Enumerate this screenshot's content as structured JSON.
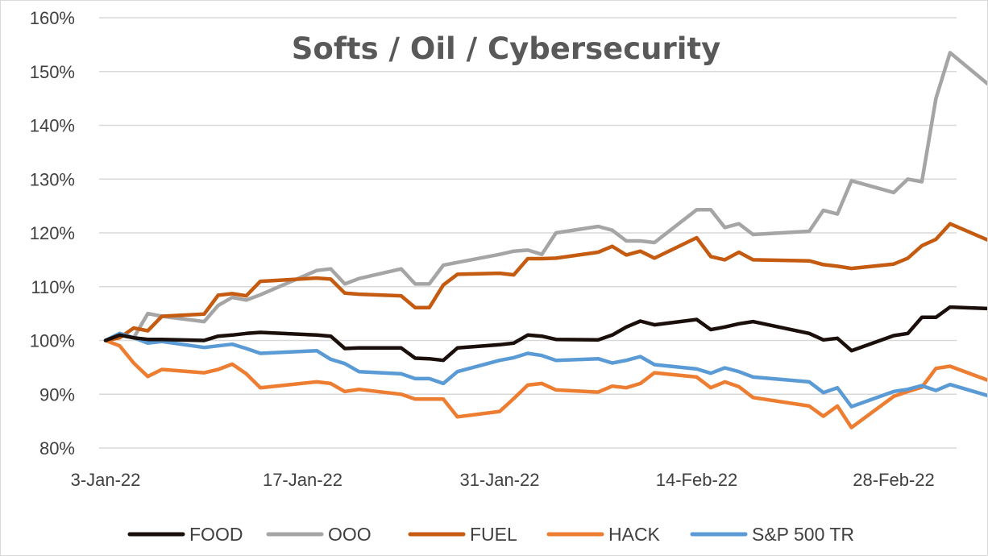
{
  "chart_data": {
    "type": "line",
    "title": "Softs / Oil / Cybersecurity",
    "xlabel": "",
    "ylabel": "",
    "ylim": [
      80,
      160
    ],
    "y_ticks": [
      80,
      90,
      100,
      110,
      120,
      130,
      140,
      150,
      160
    ],
    "y_tick_labels": [
      "80%",
      "90%",
      "100%",
      "110%",
      "120%",
      "130%",
      "140%",
      "150%",
      "160%"
    ],
    "x_tick_labels": [
      "3-Jan-22",
      "17-Jan-22",
      "31-Jan-22",
      "14-Feb-22",
      "28-Feb-22"
    ],
    "x_tick_dates": [
      "2022-01-03",
      "2022-01-17",
      "2022-01-31",
      "2022-02-14",
      "2022-02-28"
    ],
    "xlim": [
      "2022-01-03",
      "2022-03-04"
    ],
    "grid": "horizontal",
    "legend_position": "bottom",
    "series": [
      {
        "name": "FOOD",
        "color": "#1a0f0a",
        "points": [
          [
            "2022-01-03",
            100
          ],
          [
            "2022-01-04",
            101
          ],
          [
            "2022-01-05",
            100.5
          ],
          [
            "2022-01-06",
            100.2
          ],
          [
            "2022-01-07",
            100.2
          ],
          [
            "2022-01-10",
            100
          ],
          [
            "2022-01-11",
            100.8
          ],
          [
            "2022-01-12",
            101
          ],
          [
            "2022-01-13",
            101.3
          ],
          [
            "2022-01-14",
            101.5
          ],
          [
            "2022-01-18",
            101
          ],
          [
            "2022-01-19",
            100.8
          ],
          [
            "2022-01-20",
            98.5
          ],
          [
            "2022-01-21",
            98.6
          ],
          [
            "2022-01-24",
            98.6
          ],
          [
            "2022-01-25",
            96.7
          ],
          [
            "2022-01-26",
            96.6
          ],
          [
            "2022-01-27",
            96.3
          ],
          [
            "2022-01-28",
            98.6
          ],
          [
            "2022-01-31",
            99.2
          ],
          [
            "2022-02-01",
            99.5
          ],
          [
            "2022-02-02",
            101
          ],
          [
            "2022-02-03",
            100.8
          ],
          [
            "2022-02-04",
            100.2
          ],
          [
            "2022-02-07",
            100.1
          ],
          [
            "2022-02-08",
            101
          ],
          [
            "2022-02-09",
            102.5
          ],
          [
            "2022-02-10",
            103.6
          ],
          [
            "2022-02-11",
            102.9
          ],
          [
            "2022-02-14",
            103.9
          ],
          [
            "2022-02-15",
            102
          ],
          [
            "2022-02-16",
            102.5
          ],
          [
            "2022-02-17",
            103.1
          ],
          [
            "2022-02-18",
            103.5
          ],
          [
            "2022-02-22",
            101.3
          ],
          [
            "2022-02-23",
            100.1
          ],
          [
            "2022-02-24",
            100.4
          ],
          [
            "2022-02-25",
            98.1
          ],
          [
            "2022-02-28",
            100.9
          ],
          [
            "2022-03-01",
            101.3
          ],
          [
            "2022-03-02",
            104.3
          ],
          [
            "2022-03-03",
            104.3
          ],
          [
            "2022-03-04",
            106.2
          ],
          [
            "2022-03-07",
            105.9
          ]
        ]
      },
      {
        "name": "OOO",
        "color": "#a5a5a5",
        "points": [
          [
            "2022-01-03",
            100
          ],
          [
            "2022-01-04",
            101
          ],
          [
            "2022-01-05",
            100.5
          ],
          [
            "2022-01-06",
            105
          ],
          [
            "2022-01-07",
            104.5
          ],
          [
            "2022-01-10",
            103.5
          ],
          [
            "2022-01-11",
            106.5
          ],
          [
            "2022-01-12",
            108
          ],
          [
            "2022-01-13",
            107.5
          ],
          [
            "2022-01-14",
            108.5
          ],
          [
            "2022-01-18",
            113
          ],
          [
            "2022-01-19",
            113.3
          ],
          [
            "2022-01-20",
            110.5
          ],
          [
            "2022-01-21",
            111.5
          ],
          [
            "2022-01-24",
            113.3
          ],
          [
            "2022-01-25",
            110.5
          ],
          [
            "2022-01-26",
            110.5
          ],
          [
            "2022-01-27",
            114
          ],
          [
            "2022-01-28",
            114.5
          ],
          [
            "2022-01-31",
            116
          ],
          [
            "2022-02-01",
            116.6
          ],
          [
            "2022-02-02",
            116.8
          ],
          [
            "2022-02-03",
            116
          ],
          [
            "2022-02-04",
            120
          ],
          [
            "2022-02-07",
            121.2
          ],
          [
            "2022-02-08",
            120.5
          ],
          [
            "2022-02-09",
            118.5
          ],
          [
            "2022-02-10",
            118.5
          ],
          [
            "2022-02-11",
            118.2
          ],
          [
            "2022-02-14",
            124.3
          ],
          [
            "2022-02-15",
            124.3
          ],
          [
            "2022-02-16",
            121
          ],
          [
            "2022-02-17",
            121.7
          ],
          [
            "2022-02-18",
            119.7
          ],
          [
            "2022-02-22",
            120.3
          ],
          [
            "2022-02-23",
            124.2
          ],
          [
            "2022-02-24",
            123.5
          ],
          [
            "2022-02-25",
            129.7
          ],
          [
            "2022-02-28",
            127.5
          ],
          [
            "2022-03-01",
            130
          ],
          [
            "2022-03-02",
            129.5
          ],
          [
            "2022-03-03",
            145
          ],
          [
            "2022-03-04",
            153.5
          ],
          [
            "2022-03-07",
            147
          ]
        ]
      },
      {
        "name": "FUEL",
        "color": "#c55a11",
        "points": [
          [
            "2022-01-03",
            100
          ],
          [
            "2022-01-04",
            100.5
          ],
          [
            "2022-01-05",
            102.3
          ],
          [
            "2022-01-06",
            101.8
          ],
          [
            "2022-01-07",
            104.5
          ],
          [
            "2022-01-10",
            104.9
          ],
          [
            "2022-01-11",
            108.4
          ],
          [
            "2022-01-12",
            108.7
          ],
          [
            "2022-01-13",
            108.3
          ],
          [
            "2022-01-14",
            111
          ],
          [
            "2022-01-18",
            111.6
          ],
          [
            "2022-01-19",
            111.4
          ],
          [
            "2022-01-20",
            108.8
          ],
          [
            "2022-01-21",
            108.6
          ],
          [
            "2022-01-24",
            108.3
          ],
          [
            "2022-01-25",
            106.1
          ],
          [
            "2022-01-26",
            106.1
          ],
          [
            "2022-01-27",
            110.3
          ],
          [
            "2022-01-28",
            112.3
          ],
          [
            "2022-01-31",
            112.5
          ],
          [
            "2022-02-01",
            112.2
          ],
          [
            "2022-02-02",
            115.2
          ],
          [
            "2022-02-03",
            115.2
          ],
          [
            "2022-02-04",
            115.3
          ],
          [
            "2022-02-07",
            116.4
          ],
          [
            "2022-02-08",
            117.5
          ],
          [
            "2022-02-09",
            115.9
          ],
          [
            "2022-02-10",
            116.6
          ],
          [
            "2022-02-11",
            115.3
          ],
          [
            "2022-02-14",
            119.1
          ],
          [
            "2022-02-15",
            115.6
          ],
          [
            "2022-02-16",
            115
          ],
          [
            "2022-02-17",
            116.4
          ],
          [
            "2022-02-18",
            115
          ],
          [
            "2022-02-22",
            114.8
          ],
          [
            "2022-02-23",
            114.1
          ],
          [
            "2022-02-24",
            113.8
          ],
          [
            "2022-02-25",
            113.4
          ],
          [
            "2022-02-28",
            114.2
          ],
          [
            "2022-03-01",
            115.3
          ],
          [
            "2022-03-02",
            117.6
          ],
          [
            "2022-03-03",
            118.8
          ],
          [
            "2022-03-04",
            121.7
          ],
          [
            "2022-03-07",
            118.3
          ]
        ]
      },
      {
        "name": "HACK",
        "color": "#ed7d31",
        "points": [
          [
            "2022-01-03",
            100
          ],
          [
            "2022-01-04",
            99
          ],
          [
            "2022-01-05",
            95.8
          ],
          [
            "2022-01-06",
            93.3
          ],
          [
            "2022-01-07",
            94.6
          ],
          [
            "2022-01-10",
            94
          ],
          [
            "2022-01-11",
            94.6
          ],
          [
            "2022-01-12",
            95.6
          ],
          [
            "2022-01-13",
            93.8
          ],
          [
            "2022-01-14",
            91.2
          ],
          [
            "2022-01-18",
            92.3
          ],
          [
            "2022-01-19",
            92
          ],
          [
            "2022-01-20",
            90.5
          ],
          [
            "2022-01-21",
            90.9
          ],
          [
            "2022-01-24",
            90
          ],
          [
            "2022-01-25",
            89.1
          ],
          [
            "2022-01-26",
            89.1
          ],
          [
            "2022-01-27",
            89.1
          ],
          [
            "2022-01-28",
            85.8
          ],
          [
            "2022-01-31",
            86.8
          ],
          [
            "2022-02-01",
            89.2
          ],
          [
            "2022-02-02",
            91.7
          ],
          [
            "2022-02-03",
            92
          ],
          [
            "2022-02-04",
            90.8
          ],
          [
            "2022-02-07",
            90.4
          ],
          [
            "2022-02-08",
            91.5
          ],
          [
            "2022-02-09",
            91.2
          ],
          [
            "2022-02-10",
            92
          ],
          [
            "2022-02-11",
            94
          ],
          [
            "2022-02-14",
            93.2
          ],
          [
            "2022-02-15",
            91.2
          ],
          [
            "2022-02-16",
            92.3
          ],
          [
            "2022-02-17",
            91.4
          ],
          [
            "2022-02-18",
            89.4
          ],
          [
            "2022-02-22",
            87.8
          ],
          [
            "2022-02-23",
            85.9
          ],
          [
            "2022-02-24",
            87.8
          ],
          [
            "2022-02-25",
            83.8
          ],
          [
            "2022-02-28",
            89.6
          ],
          [
            "2022-03-01",
            90.5
          ],
          [
            "2022-03-02",
            91.3
          ],
          [
            "2022-03-03",
            94.8
          ],
          [
            "2022-03-04",
            95.2
          ],
          [
            "2022-03-07",
            92.3
          ]
        ]
      },
      {
        "name": "S&P 500 TR",
        "color": "#5b9bd5",
        "points": [
          [
            "2022-01-03",
            100
          ],
          [
            "2022-01-04",
            101.3
          ],
          [
            "2022-01-05",
            100.5
          ],
          [
            "2022-01-06",
            99.5
          ],
          [
            "2022-01-07",
            99.8
          ],
          [
            "2022-01-10",
            98.7
          ],
          [
            "2022-01-11",
            99
          ],
          [
            "2022-01-12",
            99.3
          ],
          [
            "2022-01-13",
            98.5
          ],
          [
            "2022-01-14",
            97.6
          ],
          [
            "2022-01-18",
            98.1
          ],
          [
            "2022-01-19",
            96.5
          ],
          [
            "2022-01-20",
            95.7
          ],
          [
            "2022-01-21",
            94.2
          ],
          [
            "2022-01-24",
            93.8
          ],
          [
            "2022-01-25",
            92.9
          ],
          [
            "2022-01-26",
            92.9
          ],
          [
            "2022-01-27",
            92
          ],
          [
            "2022-01-28",
            94.2
          ],
          [
            "2022-01-31",
            96.3
          ],
          [
            "2022-02-01",
            96.8
          ],
          [
            "2022-02-02",
            97.6
          ],
          [
            "2022-02-03",
            97.2
          ],
          [
            "2022-02-04",
            96.3
          ],
          [
            "2022-02-07",
            96.6
          ],
          [
            "2022-02-08",
            95.8
          ],
          [
            "2022-02-09",
            96.3
          ],
          [
            "2022-02-10",
            97
          ],
          [
            "2022-02-11",
            95.5
          ],
          [
            "2022-02-14",
            94.7
          ],
          [
            "2022-02-15",
            93.9
          ],
          [
            "2022-02-16",
            94.9
          ],
          [
            "2022-02-17",
            94.2
          ],
          [
            "2022-02-18",
            93.2
          ],
          [
            "2022-02-22",
            92.3
          ],
          [
            "2022-02-23",
            90.3
          ],
          [
            "2022-02-24",
            91.2
          ],
          [
            "2022-02-25",
            87.7
          ],
          [
            "2022-02-28",
            90.5
          ],
          [
            "2022-03-01",
            90.9
          ],
          [
            "2022-03-02",
            91.6
          ],
          [
            "2022-03-03",
            90.7
          ],
          [
            "2022-03-04",
            91.8
          ],
          [
            "2022-03-07",
            89.5
          ]
        ]
      }
    ]
  }
}
